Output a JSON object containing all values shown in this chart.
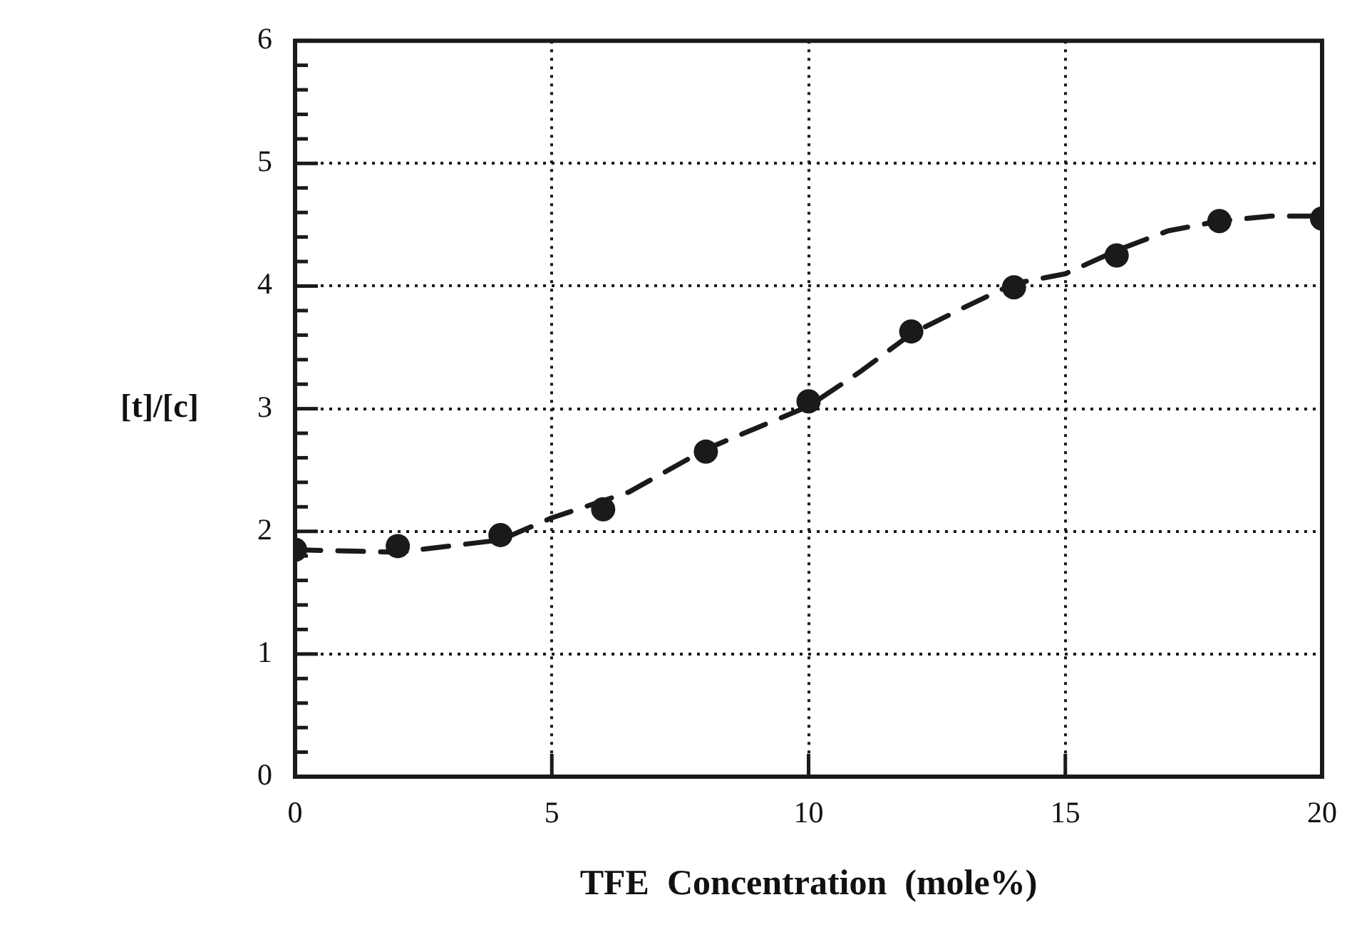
{
  "chart_data": {
    "type": "scatter",
    "xlabel": "TFE  Concentration  (mole%)",
    "ylabel": "[t]/[c]",
    "series": [
      {
        "color": "#1a1a1a",
        "marker": "circle",
        "x": [
          0,
          2,
          4,
          6,
          8,
          10,
          12,
          14,
          16,
          18,
          20
        ],
        "values": [
          1.85,
          1.88,
          1.97,
          2.18,
          2.65,
          3.06,
          3.63,
          3.99,
          4.25,
          4.53,
          4.55
        ]
      },
      {
        "type": "line",
        "color": "#1a1a1a",
        "marker": "none",
        "line_style": "dashed",
        "x": [
          0,
          2,
          4,
          5,
          6.5,
          8,
          10,
          11,
          12,
          13,
          14,
          15,
          16,
          17,
          18,
          19,
          20
        ],
        "values": [
          1.85,
          1.83,
          1.93,
          2.11,
          2.32,
          2.67,
          3.02,
          3.3,
          3.61,
          3.82,
          4.02,
          4.1,
          4.29,
          4.45,
          4.53,
          4.57,
          4.57
        ]
      }
    ],
    "xlim": [
      0,
      20
    ],
    "xticks": [
      0,
      5,
      10,
      15,
      20
    ],
    "ylim": [
      0,
      6
    ],
    "yticks": [
      0,
      {
        "value": 0.2,
        "label": null
      },
      {
        "value": 0.4,
        "label": null
      },
      {
        "value": 0.6,
        "label": null
      },
      {
        "value": 0.8,
        "label": null
      },
      1,
      {
        "value": 1.2,
        "label": null
      },
      {
        "value": 1.4,
        "label": null
      },
      {
        "value": 1.6,
        "label": null
      },
      {
        "value": 1.8,
        "label": null
      },
      2,
      {
        "value": 2.2,
        "label": null
      },
      {
        "value": 2.4,
        "label": null
      },
      {
        "value": 2.6,
        "label": null
      },
      {
        "value": 2.8,
        "label": null
      },
      3,
      {
        "value": 3.2,
        "label": null
      },
      {
        "value": 3.4,
        "label": null
      },
      {
        "value": 3.6,
        "label": null
      },
      {
        "value": 3.8,
        "label": null
      },
      4,
      {
        "value": 4.2,
        "label": null
      },
      {
        "value": 4.4,
        "label": null
      },
      {
        "value": 4.6,
        "label": null
      },
      {
        "value": 4.8,
        "label": null
      },
      5,
      {
        "value": 5.2,
        "label": null
      },
      {
        "value": 5.4,
        "label": null
      },
      {
        "value": 5.6,
        "label": null
      },
      {
        "value": 5.8,
        "label": null
      },
      6
    ],
    "grid": true,
    "legend": false
  }
}
